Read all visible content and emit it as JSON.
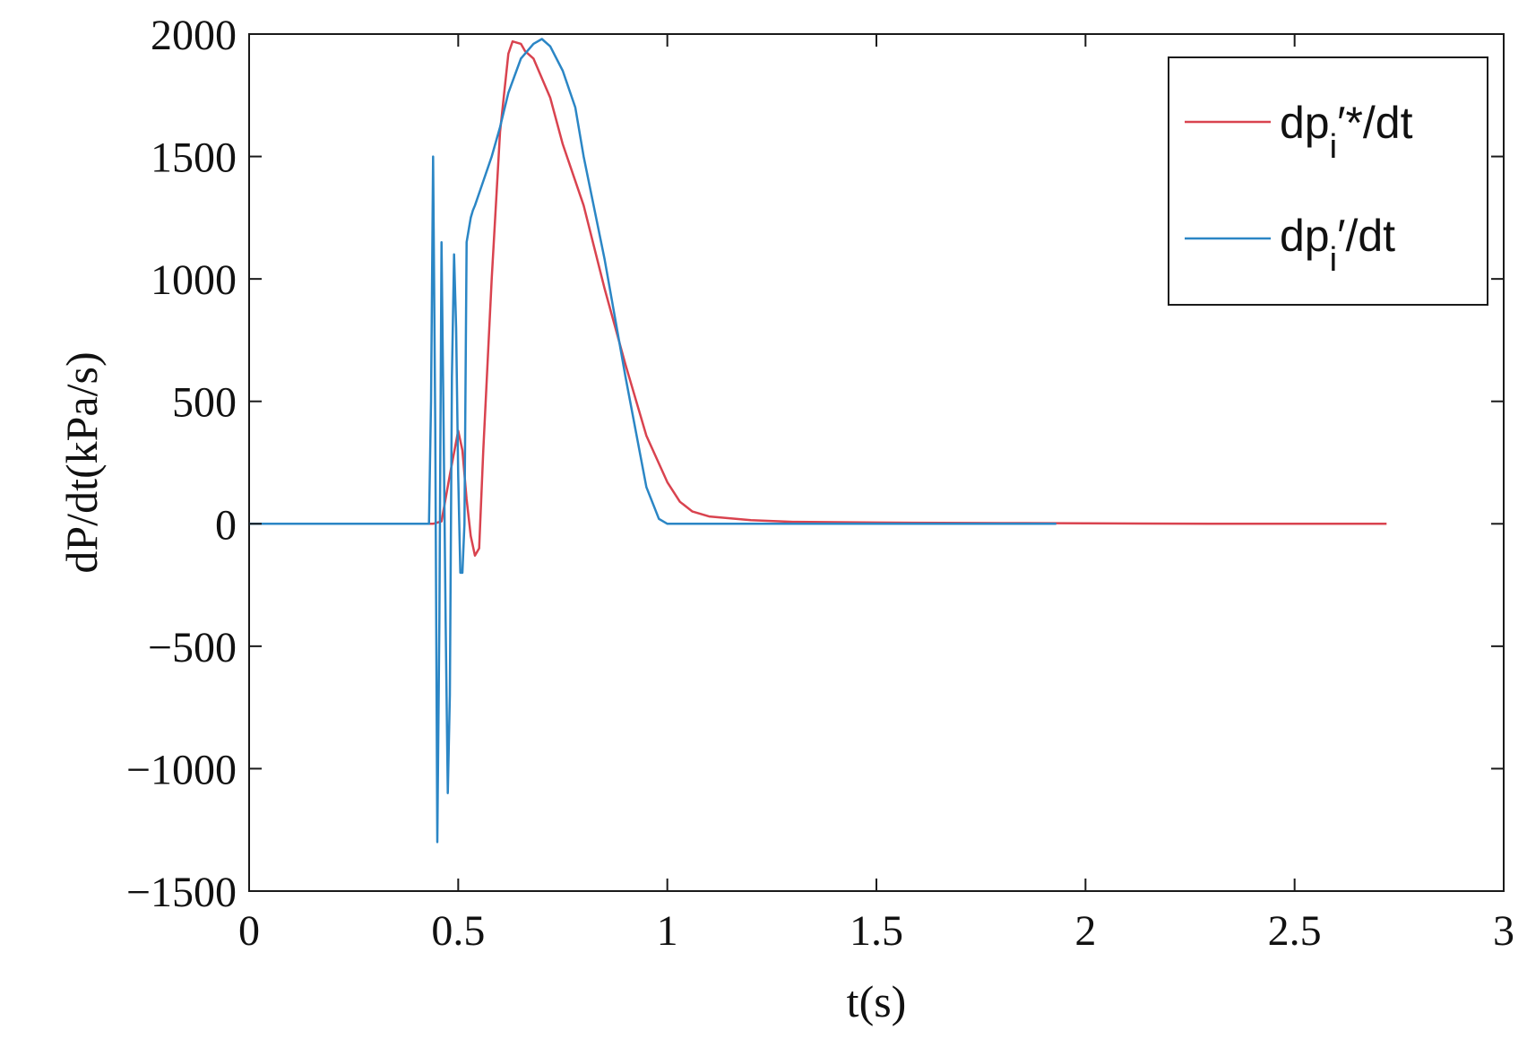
{
  "chart_data": {
    "type": "line",
    "title": "",
    "xlabel": "t(s)",
    "ylabel": "dP/dt(kPa/s)",
    "xlim": [
      0,
      3
    ],
    "ylim": [
      -1500,
      2000
    ],
    "xticks": [
      0,
      0.5,
      1,
      1.5,
      2,
      2.5,
      3
    ],
    "xtick_labels": [
      "0",
      "0.5",
      "1",
      "1.5",
      "2",
      "2.5",
      "3"
    ],
    "yticks": [
      -1500,
      -1000,
      -500,
      0,
      500,
      1000,
      1500,
      2000
    ],
    "ytick_labels": [
      "−1500",
      "−1000",
      "−500",
      "0",
      "500",
      "1000",
      "1500",
      "2000"
    ],
    "grid": false,
    "legend_position": "top-right",
    "series": [
      {
        "name": "dp",
        "subscript": "i",
        "suffix": "′*/dt",
        "color": "#d9434f",
        "x": [
          0,
          0.44,
          0.46,
          0.48,
          0.5,
          0.51,
          0.52,
          0.53,
          0.54,
          0.55,
          0.56,
          0.58,
          0.6,
          0.62,
          0.63,
          0.65,
          0.66,
          0.68,
          0.7,
          0.72,
          0.75,
          0.8,
          0.85,
          0.9,
          0.95,
          1.0,
          1.03,
          1.06,
          1.1,
          1.2,
          1.3,
          1.5,
          1.8,
          2.0,
          2.3,
          2.5,
          2.72
        ],
        "y": [
          0,
          0,
          10,
          200,
          380,
          300,
          100,
          -50,
          -130,
          -100,
          300,
          1000,
          1600,
          1920,
          1970,
          1960,
          1930,
          1900,
          1820,
          1740,
          1550,
          1300,
          960,
          650,
          360,
          170,
          90,
          50,
          30,
          15,
          8,
          5,
          3,
          2,
          0,
          0,
          0
        ]
      },
      {
        "name": "dp",
        "subscript": "i",
        "suffix": "′/dt",
        "color": "#2b86c5",
        "x": [
          0,
          0.43,
          0.435,
          0.44,
          0.445,
          0.45,
          0.455,
          0.46,
          0.465,
          0.47,
          0.475,
          0.48,
          0.485,
          0.49,
          0.495,
          0.5,
          0.505,
          0.51,
          0.515,
          0.52,
          0.525,
          0.53,
          0.535,
          0.54,
          0.55,
          0.58,
          0.6,
          0.62,
          0.65,
          0.68,
          0.7,
          0.72,
          0.75,
          0.78,
          0.8,
          0.85,
          0.9,
          0.95,
          0.98,
          1.0,
          1.1,
          1.5,
          1.93
        ],
        "y": [
          0,
          0,
          500,
          1500,
          400,
          -1300,
          -400,
          1150,
          400,
          -400,
          -1100,
          -700,
          600,
          1100,
          800,
          200,
          -200,
          -200,
          0,
          1150,
          1200,
          1250,
          1280,
          1300,
          1350,
          1500,
          1620,
          1760,
          1900,
          1960,
          1980,
          1950,
          1850,
          1700,
          1500,
          1080,
          600,
          150,
          20,
          0,
          0,
          0,
          0
        ]
      }
    ]
  }
}
